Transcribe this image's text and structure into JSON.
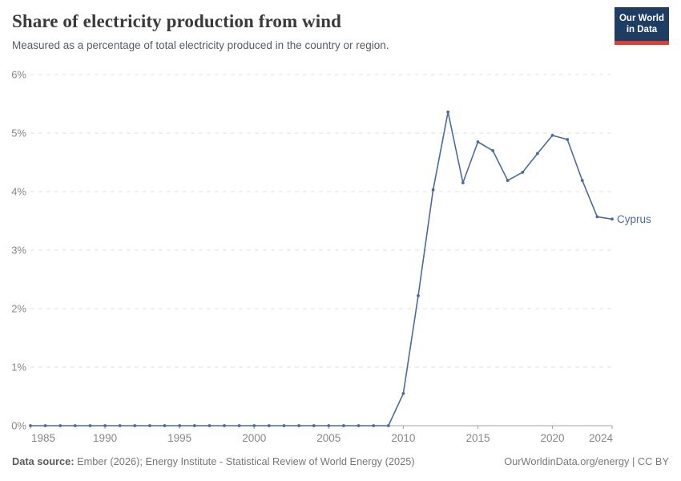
{
  "header": {
    "title": "Share of electricity production from wind",
    "subtitle": "Measured as a percentage of total electricity produced in the country or region.",
    "logo": {
      "line1": "Our World",
      "line2": "in Data",
      "bg_color": "#1d3d63",
      "stripe_color": "#dc3e32"
    }
  },
  "chart_data": {
    "type": "line",
    "title": "Share of electricity production from wind",
    "xlabel": "",
    "ylabel": "",
    "x": [
      1985,
      1986,
      1987,
      1988,
      1989,
      1990,
      1991,
      1992,
      1993,
      1994,
      1995,
      1996,
      1997,
      1998,
      1999,
      2000,
      2001,
      2002,
      2003,
      2004,
      2005,
      2006,
      2007,
      2008,
      2009,
      2010,
      2011,
      2012,
      2013,
      2014,
      2015,
      2016,
      2017,
      2018,
      2019,
      2020,
      2021,
      2022,
      2023,
      2024
    ],
    "series": [
      {
        "name": "Cyprus",
        "color": "#4c6a9c",
        "values": [
          0,
          0,
          0,
          0,
          0,
          0,
          0,
          0,
          0,
          0,
          0,
          0,
          0,
          0,
          0,
          0,
          0,
          0,
          0,
          0,
          0,
          0,
          0,
          0,
          0,
          0.55,
          2.22,
          4.03,
          5.36,
          4.15,
          4.85,
          4.7,
          4.19,
          4.33,
          4.65,
          4.96,
          4.89,
          4.19,
          3.57,
          3.53
        ]
      }
    ],
    "xlim": [
      1985,
      2024
    ],
    "ylim": [
      0,
      6
    ],
    "x_ticks": [
      1985,
      1990,
      1995,
      2000,
      2005,
      2010,
      2015,
      2020,
      2024
    ],
    "y_ticks": [
      0,
      1,
      2,
      3,
      4,
      5,
      6
    ],
    "y_tick_suffix": "%",
    "grid": "horizontal-dashed",
    "legend_position": "end-of-line-label",
    "colors": {
      "gridline": "#e2e2e2",
      "axis_line": "#a3a3a3",
      "tick_label": "#878787"
    }
  },
  "footer": {
    "source_label": "Data source:",
    "source_text": "Ember (2026); Energy Institute - Statistical Review of World Energy (2025)",
    "credit": "OurWorldinData.org/energy | CC BY"
  }
}
